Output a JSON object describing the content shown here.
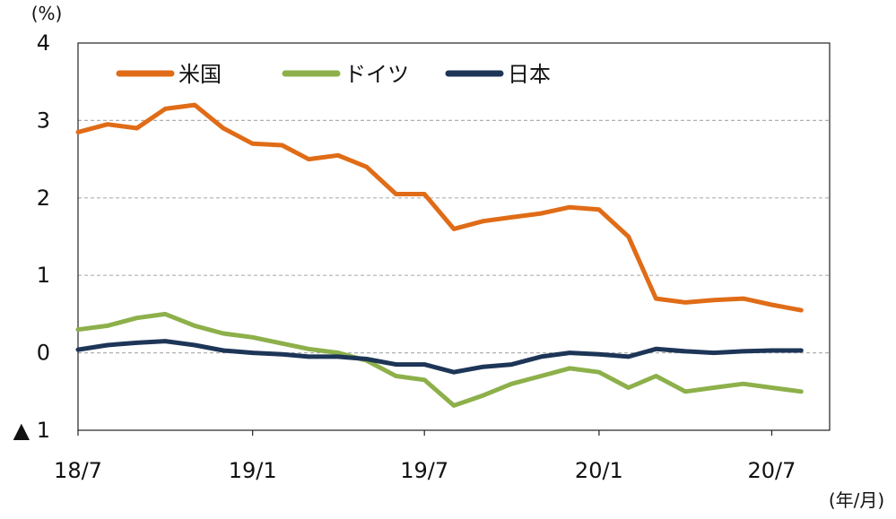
{
  "chart_data": {
    "type": "line",
    "y_unit": "(%)",
    "x_unit": "(年/月)",
    "ylim": [
      -1,
      4
    ],
    "y_ticks": [
      {
        "value": 4,
        "label": "4"
      },
      {
        "value": 3,
        "label": "3"
      },
      {
        "value": 2,
        "label": "2"
      },
      {
        "value": 1,
        "label": "1"
      },
      {
        "value": 0,
        "label": "0"
      },
      {
        "value": -1,
        "label": "▲ 1"
      }
    ],
    "x_ticks": [
      "18/7",
      "19/1",
      "19/7",
      "20/1",
      "20/7"
    ],
    "grid": true,
    "legend_position": "top-left",
    "series": [
      {
        "name": "米国",
        "color": "#e06c17",
        "x": [
          "2018-07",
          "2018-08",
          "2018-09",
          "2018-10",
          "2018-11",
          "2018-12",
          "2019-01",
          "2019-02",
          "2019-03",
          "2019-04",
          "2019-05",
          "2019-06",
          "2019-07",
          "2019-08",
          "2019-09",
          "2019-10",
          "2019-11",
          "2019-12",
          "2020-01",
          "2020-02",
          "2020-03",
          "2020-04",
          "2020-05",
          "2020-06",
          "2020-07",
          "2020-08"
        ],
        "values": [
          2.85,
          2.95,
          2.9,
          3.15,
          3.2,
          2.9,
          2.7,
          2.68,
          2.5,
          2.55,
          2.4,
          2.05,
          2.05,
          1.6,
          1.7,
          1.75,
          1.8,
          1.88,
          1.85,
          1.5,
          0.7,
          0.65,
          0.68,
          0.7,
          0.62,
          0.55
        ]
      },
      {
        "name": "ドイツ",
        "color": "#8db04a",
        "x": [
          "2018-07",
          "2018-08",
          "2018-09",
          "2018-10",
          "2018-11",
          "2018-12",
          "2019-01",
          "2019-02",
          "2019-03",
          "2019-04",
          "2019-05",
          "2019-06",
          "2019-07",
          "2019-08",
          "2019-09",
          "2019-10",
          "2019-11",
          "2019-12",
          "2020-01",
          "2020-02",
          "2020-03",
          "2020-04",
          "2020-05",
          "2020-06",
          "2020-07",
          "2020-08"
        ],
        "values": [
          0.3,
          0.35,
          0.45,
          0.5,
          0.35,
          0.25,
          0.2,
          0.12,
          0.05,
          0.0,
          -0.1,
          -0.3,
          -0.35,
          -0.68,
          -0.55,
          -0.4,
          -0.3,
          -0.2,
          -0.25,
          -0.45,
          -0.3,
          -0.5,
          -0.45,
          -0.4,
          -0.45,
          -0.5
        ]
      },
      {
        "name": "日本",
        "color": "#1d3557",
        "x": [
          "2018-07",
          "2018-08",
          "2018-09",
          "2018-10",
          "2018-11",
          "2018-12",
          "2019-01",
          "2019-02",
          "2019-03",
          "2019-04",
          "2019-05",
          "2019-06",
          "2019-07",
          "2019-08",
          "2019-09",
          "2019-10",
          "2019-11",
          "2019-12",
          "2020-01",
          "2020-02",
          "2020-03",
          "2020-04",
          "2020-05",
          "2020-06",
          "2020-07",
          "2020-08"
        ],
        "values": [
          0.04,
          0.1,
          0.13,
          0.15,
          0.1,
          0.03,
          0.0,
          -0.02,
          -0.05,
          -0.05,
          -0.08,
          -0.15,
          -0.15,
          -0.25,
          -0.18,
          -0.15,
          -0.05,
          0.0,
          -0.02,
          -0.05,
          0.05,
          0.02,
          0.0,
          0.02,
          0.03,
          0.03
        ]
      }
    ]
  }
}
